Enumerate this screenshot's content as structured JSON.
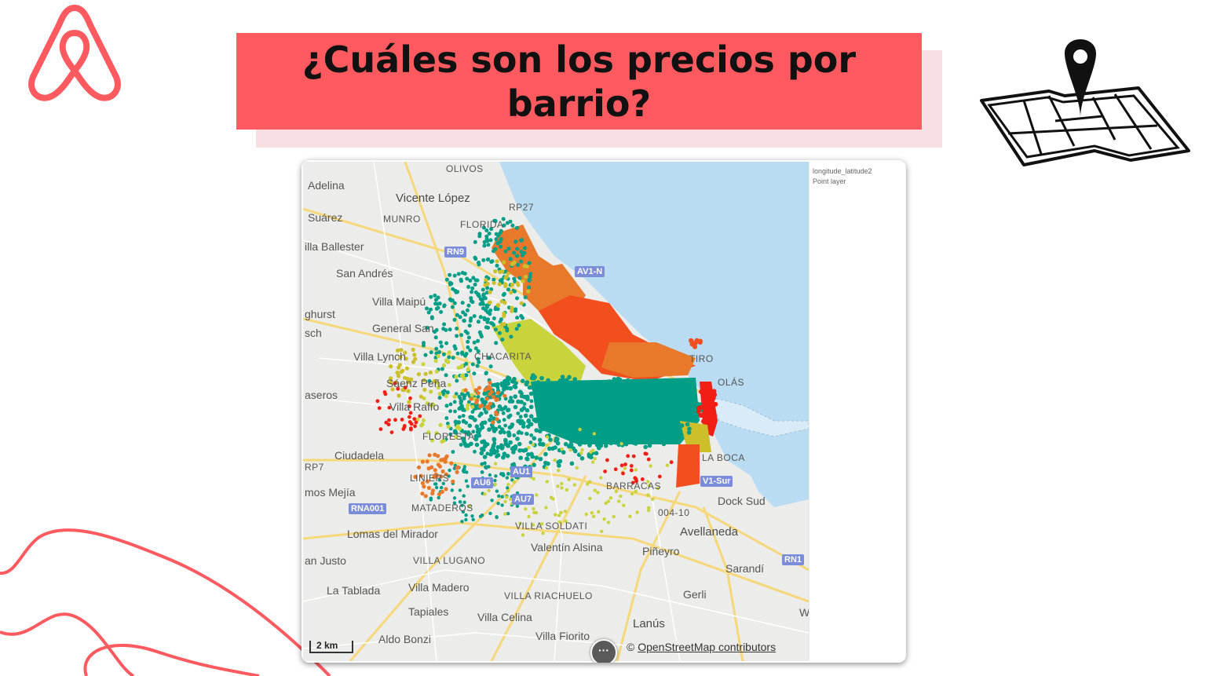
{
  "slide": {
    "title": "¿Cuáles son los precios por barrio?",
    "logo_icon": "airbnb-logo-icon",
    "decor_icon": "map-pin-icon",
    "accent_color": "#ff5a5f",
    "title_shadow_color": "#f8dfe3"
  },
  "map": {
    "legend_field": "longitude_latitude2",
    "legend_layer": "Point layer",
    "scale_label": "2 km",
    "attribution_prefix": "© ",
    "attribution_link": "OpenStreetMap contributors",
    "more_button_label": "···",
    "water_color": "#b9dcf3",
    "land_color": "#ececea",
    "price_colors": [
      "#009e87",
      "#c9d33c",
      "#cdbf2a",
      "#e8792a",
      "#f24e1e",
      "#f21f16"
    ],
    "places": [
      {
        "name": "OLIVOS",
        "style": "small"
      },
      {
        "name": "Adelina"
      },
      {
        "name": "Vicente López",
        "style": "bold"
      },
      {
        "name": "RP27",
        "style": "small"
      },
      {
        "name": "Suárez"
      },
      {
        "name": "MUNRO",
        "style": "small"
      },
      {
        "name": "FLORIDA",
        "style": "small"
      },
      {
        "name": "illa Ballester"
      },
      {
        "name": "San Andrés"
      },
      {
        "name": "Villa Maipú"
      },
      {
        "name": "ghurst"
      },
      {
        "name": "General San"
      },
      {
        "name": "sch"
      },
      {
        "name": "Villa Lynch"
      },
      {
        "name": "CHACARITA",
        "style": "small"
      },
      {
        "name": "Sáenz Peña"
      },
      {
        "name": "aseros"
      },
      {
        "name": "Villa Raffo"
      },
      {
        "name": "FLORESTA",
        "style": "small"
      },
      {
        "name": "Ciudadela"
      },
      {
        "name": "RP7",
        "style": "small"
      },
      {
        "name": "LINIERS",
        "style": "small"
      },
      {
        "name": "mos Mejía"
      },
      {
        "name": "MATADEROS",
        "style": "small"
      },
      {
        "name": "Lomas del Mirador"
      },
      {
        "name": "VILLA SOLDATI",
        "style": "small"
      },
      {
        "name": "Valentín Alsina"
      },
      {
        "name": "an Justo"
      },
      {
        "name": "VILLA LUGANO",
        "style": "small"
      },
      {
        "name": "La Tablada"
      },
      {
        "name": "Villa Madero"
      },
      {
        "name": "VILLA RIACHUELO",
        "style": "small"
      },
      {
        "name": "Tapiales"
      },
      {
        "name": "Villa Celina"
      },
      {
        "name": "Aldo Bonzi"
      },
      {
        "name": "Villa Fiorito"
      },
      {
        "name": "Lanús",
        "style": "bold"
      },
      {
        "name": "Gerli"
      },
      {
        "name": "Piñeyro"
      },
      {
        "name": "Avellaneda",
        "style": "bold"
      },
      {
        "name": "Sarandí"
      },
      {
        "name": "Dock Sud"
      },
      {
        "name": "004-10",
        "style": "small"
      },
      {
        "name": "BARRACAS",
        "style": "small"
      },
      {
        "name": "LA BOCA",
        "style": "small"
      },
      {
        "name": "TIRO",
        "style": "small"
      },
      {
        "name": "OLÁS",
        "style": "small"
      },
      {
        "name": "Wil"
      }
    ],
    "shields": [
      "RN9",
      "AV1-N",
      "AU6",
      "AU1",
      "AU7",
      "RNA001",
      "V1-Sur",
      "RN1"
    ]
  }
}
